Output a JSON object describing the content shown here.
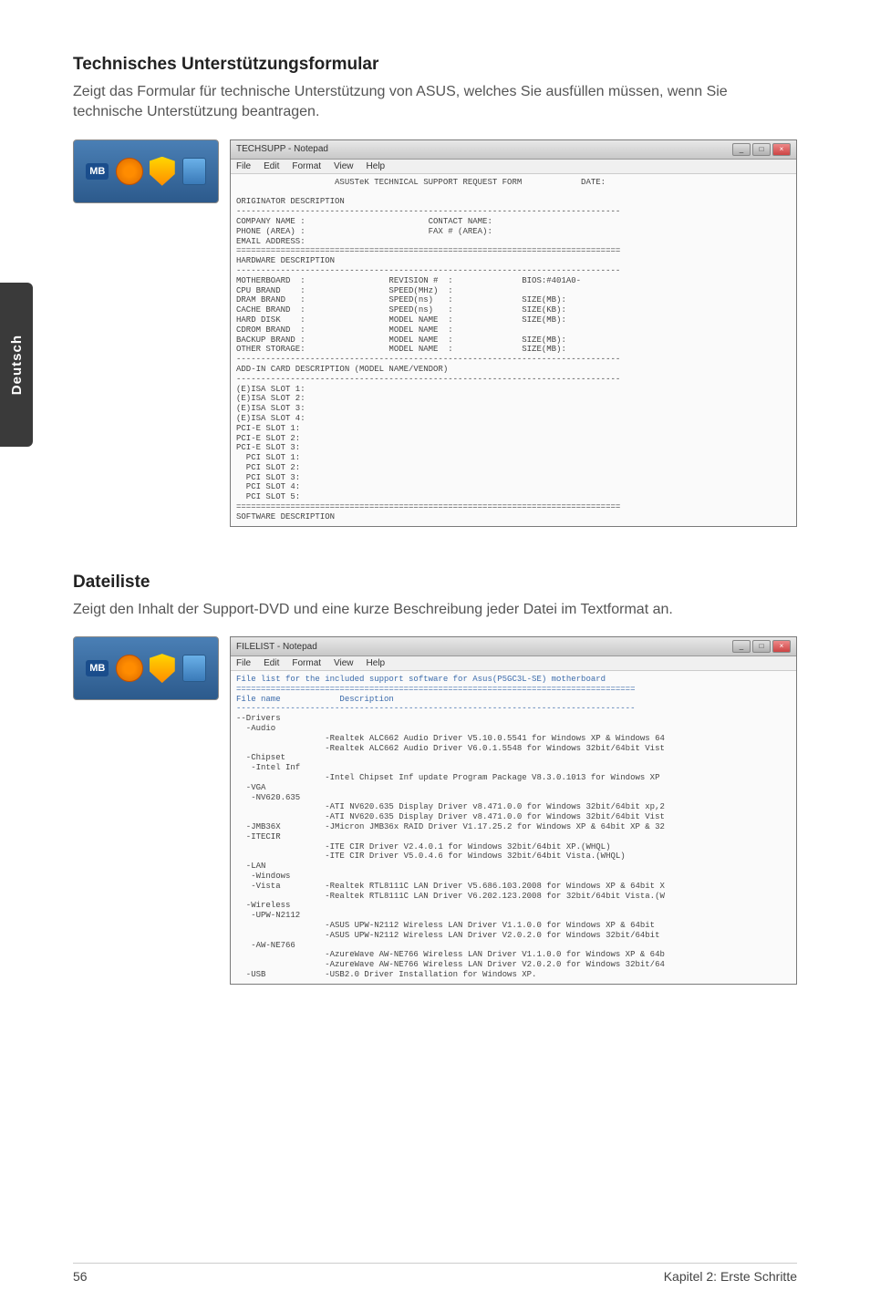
{
  "sideTab": "Deutsch",
  "section1": {
    "title": "Technisches Unterstützungsformular",
    "desc": "Zeigt das Formular für technische Unterstützung von ASUS, welches Sie ausfüllen müssen, wenn Sie technische Unterstützung beantragen.",
    "window": {
      "title": "TECHSUPP - Notepad",
      "menu": [
        "File",
        "Edit",
        "Format",
        "View",
        "Help"
      ],
      "body": "                    ASUSTeK TECHNICAL SUPPORT REQUEST FORM            DATE:\n\nORIGINATOR DESCRIPTION\n------------------------------------------------------------------------------\nCOMPANY NAME :                         CONTACT NAME:\nPHONE (AREA) :                         FAX # (AREA):\nEMAIL ADDRESS:\n==============================================================================\nHARDWARE DESCRIPTION\n------------------------------------------------------------------------------\nMOTHERBOARD  :                 REVISION #  :              BIOS:#401A0-\nCPU BRAND    :                 SPEED(MHz)  :\nDRAM BRAND   :                 SPEED(ns)   :              SIZE(MB):\nCACHE BRAND  :                 SPEED(ns)   :              SIZE(KB):\nHARD DISK    :                 MODEL NAME  :              SIZE(MB):\nCDROM BRAND  :                 MODEL NAME  :\nBACKUP BRAND :                 MODEL NAME  :              SIZE(MB):\nOTHER STORAGE:                 MODEL NAME  :              SIZE(MB):\n------------------------------------------------------------------------------\nADD-IN CARD DESCRIPTION (MODEL NAME/VENDOR)\n------------------------------------------------------------------------------\n(E)ISA SLOT 1:\n(E)ISA SLOT 2:\n(E)ISA SLOT 3:\n(E)ISA SLOT 4:\nPCI-E SLOT 1:\nPCI-E SLOT 2:\nPCI-E SLOT 3:\n  PCI SLOT 1:\n  PCI SLOT 2:\n  PCI SLOT 3:\n  PCI SLOT 4:\n  PCI SLOT 5:\n==============================================================================\nSOFTWARE DESCRIPTION"
    }
  },
  "section2": {
    "title": "Dateiliste",
    "desc": "Zeigt den Inhalt der Support-DVD und eine kurze Beschreibung jeder Datei im Textformat an.",
    "window": {
      "title": "FILELIST - Notepad",
      "menu": [
        "File",
        "Edit",
        "Format",
        "View",
        "Help"
      ],
      "body_header": "File list for the included support software for Asus(P5GC3L-SE) motherboard\n=================================================================================\nFile name            Description\n---------------------------------------------------------------------------------",
      "body_items": "--Drivers\n  -Audio\n                  -Realtek ALC662 Audio Driver V5.10.0.5541 for Windows XP & Windows 64\n                  -Realtek ALC662 Audio Driver V6.0.1.5548 for Windows 32bit/64bit Vist\n  -Chipset\n   -Intel Inf\n                  -Intel Chipset Inf update Program Package V8.3.0.1013 for Windows XP\n  -VGA\n   -NV620.635\n                  -ATI NV620.635 Display Driver v8.471.0.0 for Windows 32bit/64bit xp,2\n                  -ATI NV620.635 Display Driver v8.471.0.0 for Windows 32bit/64bit Vist\n  -JMB36X         -JMicron JMB36x RAID Driver V1.17.25.2 for Windows XP & 64bit XP & 32\n  -ITECIR\n                  -ITE CIR Driver V2.4.0.1 for Windows 32bit/64bit XP.(WHQL)\n                  -ITE CIR Driver V5.0.4.6 for Windows 32bit/64bit Vista.(WHQL)\n  -LAN\n   -Windows\n   -Vista         -Realtek RTL8111C LAN Driver V5.686.103.2008 for Windows XP & 64bit X\n                  -Realtek RTL8111C LAN Driver V6.202.123.2008 for 32bit/64bit Vista.(W\n  -Wireless\n   -UPW-N2112\n                  -ASUS UPW-N2112 Wireless LAN Driver V1.1.0.0 for Windows XP & 64bit\n                  -ASUS UPW-N2112 Wireless LAN Driver V2.0.2.0 for Windows 32bit/64bit\n   -AW-NE766\n                  -AzureWave AW-NE766 Wireless LAN Driver V1.1.0.0 for Windows XP & 64b\n                  -AzureWave AW-NE766 Wireless LAN Driver V2.0.2.0 for Windows 32bit/64\n  -USB            -USB2.0 Driver Installation for Windows XP."
    }
  },
  "footer": {
    "pageNum": "56",
    "chapter": "Kapitel 2: Erste Schritte"
  },
  "colors": {
    "panelBg": "#2c5a8c",
    "sideTabBg": "#3a3a3a",
    "text": "#444444"
  }
}
